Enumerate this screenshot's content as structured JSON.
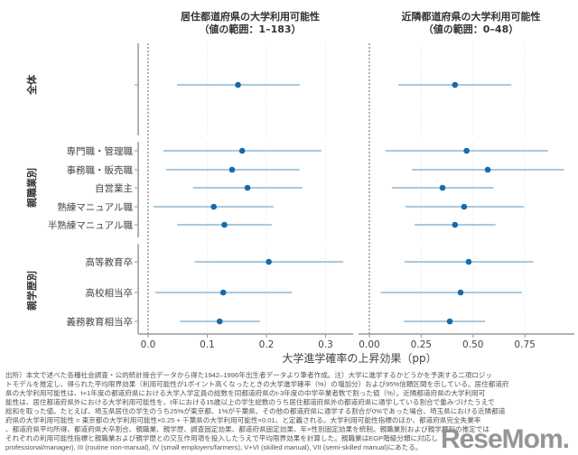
{
  "chart_data": [
    {
      "type": "forest",
      "title": "居住都道府県の大学利用可能性",
      "subtitle": "（値の範囲：1–183）",
      "xticks": [
        "0.0",
        "0.1",
        "0.2",
        "0.3"
      ],
      "xlim": [
        -0.015,
        0.345
      ],
      "estimates": [
        0.152,
        0.159,
        0.142,
        0.168,
        0.111,
        0.129,
        0.204,
        0.127,
        0.121
      ],
      "ci_low": [
        0.049,
        0.026,
        0.03,
        0.076,
        0.009,
        0.049,
        0.079,
        0.012,
        0.054
      ],
      "ci_high": [
        0.256,
        0.293,
        0.256,
        0.261,
        0.212,
        0.209,
        0.33,
        0.243,
        0.189
      ]
    },
    {
      "type": "forest",
      "title": "近隣都道府県の大学利用可能性",
      "subtitle": "（値の範囲：0–48）",
      "xticks": [
        "0.00",
        "0.25",
        "0.50",
        "0.75"
      ],
      "xlim": [
        -0.05,
        0.98
      ],
      "estimates": [
        0.413,
        0.469,
        0.571,
        0.353,
        0.457,
        0.413,
        0.479,
        0.44,
        0.388
      ],
      "ci_low": [
        0.139,
        0.077,
        0.205,
        0.109,
        0.174,
        0.218,
        0.17,
        0.055,
        0.166
      ],
      "ci_high": [
        0.685,
        0.863,
        0.94,
        0.6,
        0.745,
        0.609,
        0.791,
        0.736,
        0.558
      ]
    }
  ],
  "groups": [
    {
      "label": "全体",
      "rows": [
        ""
      ]
    },
    {
      "label": "親職業別",
      "rows": [
        "専門職・管理職",
        "事務職・販売職",
        "自営業主",
        "熟練マニュアル職",
        "半熟練マニュアル職"
      ]
    },
    {
      "label": "親学歴別",
      "rows": [
        "高等教育卒",
        "高校相当卒",
        "義務教育相当卒"
      ]
    }
  ],
  "xlabel": "大学進学確率の上昇効果（pp）",
  "colors": {
    "point": "#1a6aa8",
    "ci": "#8db9d3"
  },
  "note": [
    "出所）本文で述べた各種社会調査・公的統計接合データから得た1942–1996年出生者データより筆者作成。注）大学に進学するかどうかを予測する二項ロジッ",
    "トモデルを推定し、得られた平均限界効果（利用可能性が1ポイント高くなったときの大学進学確率（%）の増加分）および95%信頼区間を示している。居住都道府",
    "県の大学利用可能性は、t+1年度の都道府県における大学入学定員の総数を同都道府県のt-3年度の中学卒業者数で割った値（%）。近隣都道府県の大学利用可",
    "能性は、居住都道府県外における大学利用可能性を、t年における15歳以上の学生総数のうち居住都道府県外の都道府県に通学している割合で重みづけたうえで",
    "総和を取った値。たとえば、埼玉県居住の学生のうち25%が東京都、1%が千葉県、その他の都道府県に通学する割合が0%であった場合、埼玉県における近隣都道",
    "府県の大学利用可能性 = 東京都の大学利用可能性×0.25 + 千葉県の大学利用可能性×0.01、と定義される。大学利用可能性指標のほか、都道府県完全失業率",
    "、都道府県平均所得、都道府県大卒割合、親職業、親学歴、調査固定効果、都道府県固定効果、年×性別固定効果を統制。親職業別および親学歴別の推定では",
    "それぞれの利用可能性指標と親職業および親学歴との交互作用項を投入したうえで平均限界効果を計算した。親職業はEGP階級分類に対応し",
    "professional/manager), III (routine non-manual), IV (small employers/farmers), V+VI (skilled manual), VII (semi-skilled manual)にあたる。"
  ],
  "logo": "ReseMom"
}
